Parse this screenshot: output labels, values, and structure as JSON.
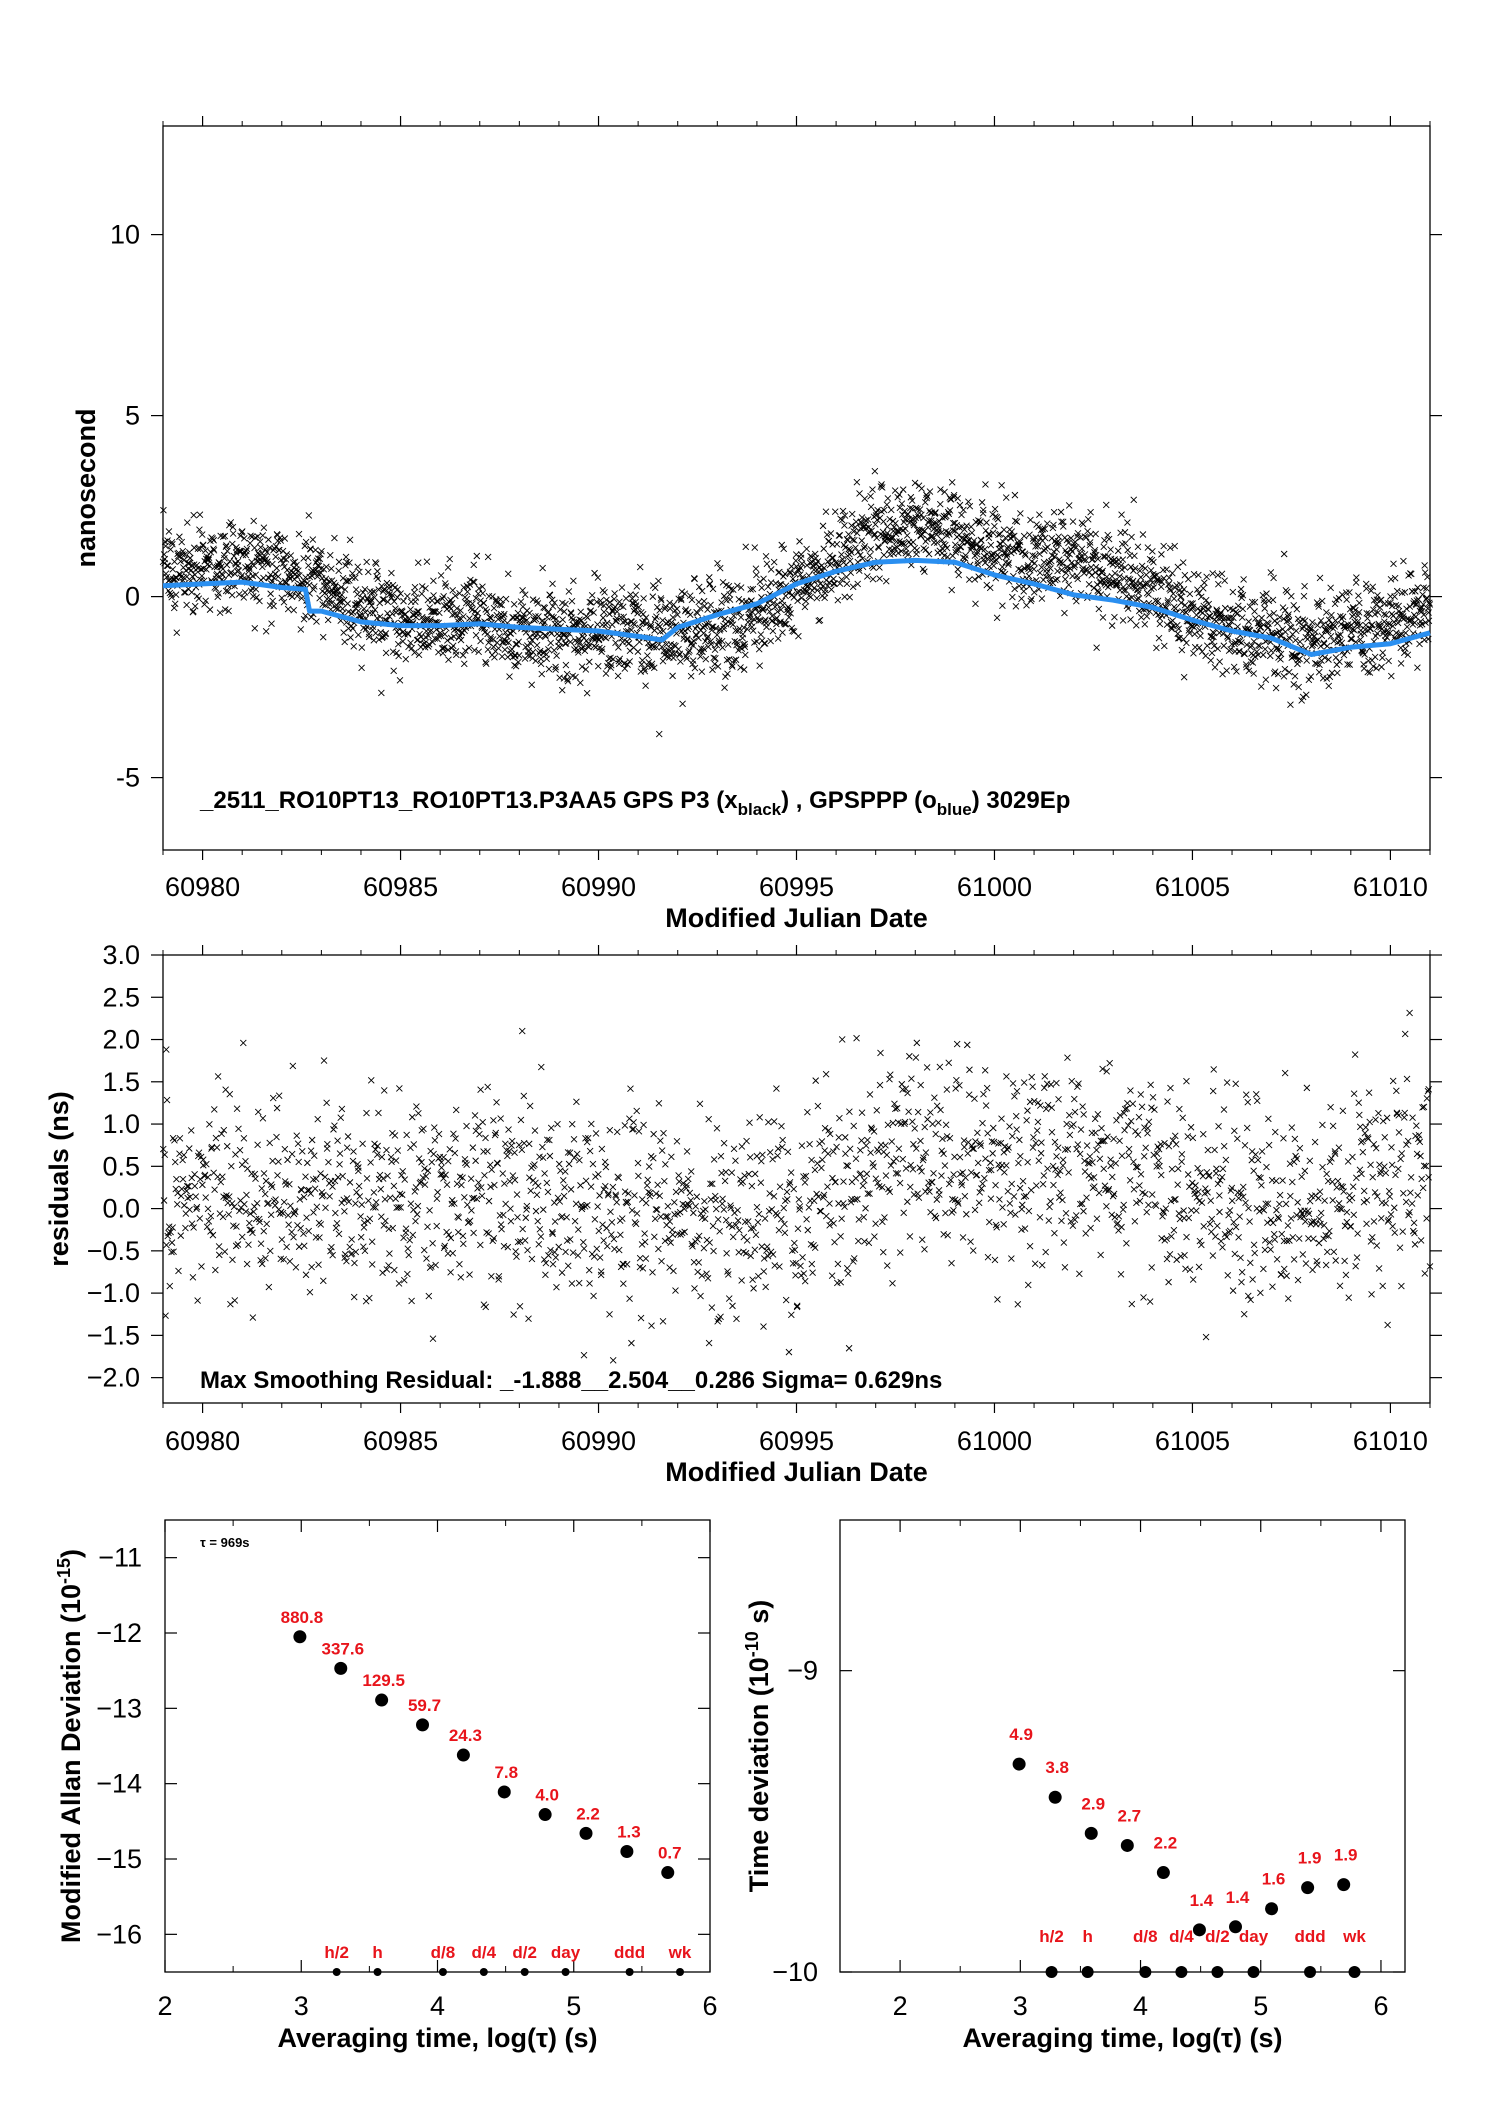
{
  "chart_data": [
    {
      "type": "scatter",
      "panel": "phase",
      "xlabel": "Modified Julian Date",
      "ylabel": "nanosecond",
      "xlim": [
        60979,
        61011
      ],
      "ylim": [
        -7,
        13
      ],
      "xticks": [
        60980,
        60985,
        60990,
        60995,
        61000,
        61005,
        61010
      ],
      "yticks": [
        -5,
        0,
        5,
        10
      ],
      "annotation": {
        "prefix": "_2511_RO10PT13_RO10PT13.P3AA5     GPS P3 (x",
        "sub1": "black",
        "mid": ") ,  GPSPPP (o",
        "sub2": "blue",
        "suffix": ")  3029Ep"
      },
      "series": [
        {
          "marker": "x",
          "color": "#000000",
          "points_per_day": 95,
          "scatter_sigma": 0.63,
          "mean_curve": {
            "x": [
              60979,
              60980,
              60981,
              60982,
              60983,
              60984,
              60985,
              60986,
              60987,
              60988,
              60989,
              60990,
              60991,
              60992,
              60993,
              60994,
              60995,
              60996,
              60997,
              60998,
              60999,
              61000,
              61001,
              61002,
              61003,
              61004,
              61005,
              61006,
              61007,
              61008,
              61009,
              61010,
              61011
            ],
            "y": [
              0.6,
              0.8,
              0.9,
              0.8,
              0.4,
              -0.4,
              -0.7,
              -0.6,
              -0.5,
              -1.1,
              -1.2,
              -0.9,
              -1.0,
              -1.0,
              -0.9,
              -0.6,
              0.3,
              1.0,
              1.8,
              2.0,
              1.8,
              1.3,
              1.0,
              1.1,
              0.6,
              0.3,
              -0.6,
              -0.9,
              -1.0,
              -1.3,
              -0.9,
              -0.7,
              -0.3
            ]
          }
        },
        {
          "marker": "o",
          "color": "#2a8ff0",
          "x": [
            60979,
            60980,
            60981,
            60982,
            60982.6,
            60982.7,
            60983,
            60984,
            60985,
            60986,
            60987,
            60988,
            60989,
            60990,
            60991,
            60991.6,
            60992,
            60993,
            60994,
            60995,
            60996,
            60997,
            60998,
            60999,
            61000,
            61001,
            61002,
            61003,
            61004,
            61005,
            61006,
            61007,
            61008,
            61009,
            61010,
            61011
          ],
          "y": [
            0.3,
            0.35,
            0.4,
            0.25,
            0.2,
            -0.4,
            -0.4,
            -0.7,
            -0.8,
            -0.8,
            -0.75,
            -0.85,
            -0.9,
            -0.95,
            -1.1,
            -1.2,
            -0.85,
            -0.5,
            -0.2,
            0.35,
            0.7,
            0.95,
            1.0,
            0.95,
            0.6,
            0.35,
            0.05,
            -0.1,
            -0.3,
            -0.65,
            -0.95,
            -1.15,
            -1.6,
            -1.4,
            -1.3,
            -1.0
          ]
        }
      ]
    },
    {
      "type": "scatter",
      "panel": "residuals",
      "xlabel": "Modified Julian Date",
      "ylabel": "residuals (ns)",
      "xlim": [
        60979,
        61011
      ],
      "ylim": [
        -2.3,
        3.0
      ],
      "xticks": [
        60980,
        60985,
        60990,
        60995,
        61000,
        61005,
        61010
      ],
      "yticks": [
        -2.0,
        -1.5,
        -1.0,
        -0.5,
        0.0,
        0.5,
        1.0,
        1.5,
        2.0,
        2.5,
        3.0
      ],
      "ytick_labels": [
        "−2.0",
        "−1.5",
        "−1.0",
        "−0.5",
        "0.0",
        "0.5",
        "1.0",
        "1.5",
        "2.0",
        "2.5",
        "3.0"
      ],
      "annotation": "Max Smoothing Residual: _-1.888__2.504__0.286  Sigma= 0.629ns",
      "series": [
        {
          "marker": "x",
          "color": "#000000",
          "points_per_day": 60,
          "scatter_sigma": 0.6,
          "mean_curve": {
            "x": [
              60979,
              60981,
              60983,
              60985,
              60987,
              60989,
              60991,
              60993,
              60995,
              60997,
              60999,
              61001,
              61003,
              61005,
              61007,
              61009,
              61011
            ],
            "y": [
              0.2,
              0.15,
              0.3,
              0.1,
              0.2,
              0.1,
              0.1,
              -0.2,
              -0.2,
              0.6,
              0.6,
              0.5,
              0.5,
              0.2,
              -0.1,
              0.1,
              0.5
            ]
          }
        }
      ]
    },
    {
      "type": "scatter",
      "panel": "mdev",
      "xlabel": "Averaging time, log(τ) (s)",
      "ylabel": "Modified Allan Deviation (10",
      "ylabel_sup": "-15",
      "ylabel_suffix": ")",
      "xlim": [
        2,
        6
      ],
      "ylim": [
        -16.5,
        -10.5
      ],
      "xticks": [
        2,
        3,
        4,
        5,
        6
      ],
      "yticks": [
        -16,
        -15,
        -14,
        -13,
        -12,
        -11
      ],
      "ytick_labels": [
        "−16",
        "−15",
        "−14",
        "−13",
        "−12",
        "−11"
      ],
      "tau_note": "τ = 969s",
      "x": [
        2.99,
        3.29,
        3.59,
        3.89,
        4.19,
        4.49,
        4.79,
        5.09,
        5.39,
        5.69
      ],
      "y": [
        -12.05,
        -12.47,
        -12.89,
        -13.22,
        -13.62,
        -14.11,
        -14.41,
        -14.66,
        -14.9,
        -15.18
      ],
      "labels": [
        "880.8",
        "337.6",
        "129.5",
        "59.7",
        "24.3",
        "7.8",
        "4.0",
        "2.2",
        "1.3",
        "0.7"
      ],
      "markers_row": {
        "x": [
          3.26,
          3.56,
          4.04,
          4.34,
          4.64,
          4.94,
          5.41,
          5.78
        ],
        "y": -16.5,
        "labels": [
          "h/2",
          "h",
          "d/8",
          "d/4",
          "d/2",
          "day",
          "ddd",
          "wk"
        ]
      }
    },
    {
      "type": "scatter",
      "panel": "tdev",
      "xlabel": "Averaging time, log(τ) (s)",
      "ylabel": "Time deviation (10",
      "ylabel_sup": "-10",
      "ylabel_suffix": " s)",
      "xlim": [
        1.5,
        6.2
      ],
      "ylim": [
        -10.0,
        -8.5
      ],
      "xticks": [
        2,
        3,
        4,
        5,
        6
      ],
      "yticks": [
        -10,
        -9
      ],
      "ytick_labels": [
        "−10",
        "−9"
      ],
      "x": [
        2.99,
        3.29,
        3.59,
        3.89,
        4.19,
        4.49,
        4.79,
        5.09,
        5.39,
        5.69
      ],
      "y": [
        -9.31,
        -9.42,
        -9.54,
        -9.58,
        -9.67,
        -9.86,
        -9.85,
        -9.79,
        -9.72,
        -9.71
      ],
      "labels": [
        "4.9",
        "3.8",
        "2.9",
        "2.7",
        "2.2",
        "1.4",
        "1.4",
        "1.6",
        "1.9",
        "1.9"
      ],
      "markers_row": {
        "x": [
          3.26,
          3.56,
          4.04,
          4.34,
          4.64,
          4.94,
          5.41,
          5.78
        ],
        "y": -10.0,
        "labels": [
          "h/2",
          "h",
          "d/8",
          "d/4",
          "d/2",
          "day",
          "ddd",
          "wk"
        ]
      }
    }
  ]
}
